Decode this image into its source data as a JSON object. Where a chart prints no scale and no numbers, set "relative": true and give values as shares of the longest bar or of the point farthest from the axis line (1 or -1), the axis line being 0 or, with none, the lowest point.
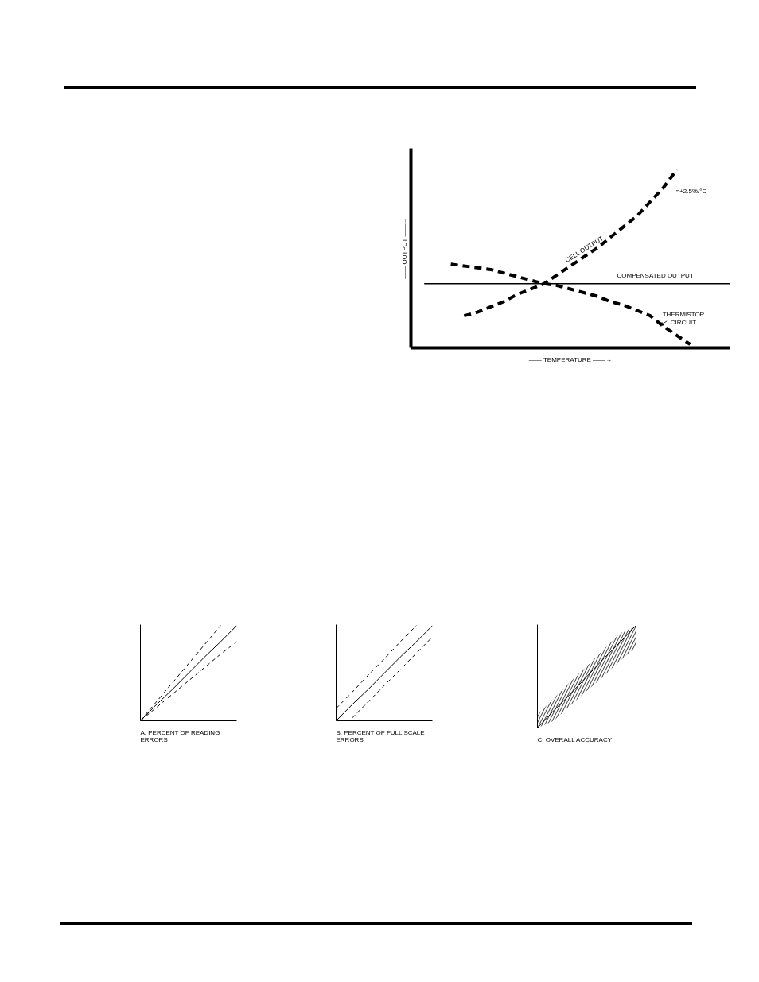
{
  "chart_data": [
    {
      "type": "line",
      "relative": true,
      "xlabel": "—— TEMPERATURE ——→",
      "ylabel": "—— OUTPUT ——→",
      "annotations": [
        "≈+2.5%/°C"
      ],
      "categories": [
        null,
        null,
        null,
        null,
        null,
        null,
        null,
        null,
        null,
        null,
        null,
        null,
        null,
        null,
        null,
        null,
        null,
        null,
        null,
        null,
        null,
        null,
        null,
        null,
        null
      ],
      "series": [
        {
          "name": "CELL OUTPUT",
          "color": "#000000",
          "line_style": "dashed",
          "values": [
            null,
            null,
            null,
            null,
            0.18,
            0.2,
            0.23,
            0.26,
            0.3,
            0.33,
            0.36,
            0.41,
            0.46,
            0.51,
            0.56,
            0.62,
            0.68,
            0.74,
            0.82,
            0.9,
            1,
            null,
            null,
            null,
            null
          ]
        },
        {
          "name": "COMPENSATED OUTPUT",
          "color": "#000000",
          "line_style": "solid",
          "values": [
            null,
            0.36,
            0.36,
            0.36,
            0.36,
            0.36,
            0.36,
            0.36,
            0.36,
            0.36,
            0.36,
            0.36,
            0.36,
            0.36,
            0.36,
            0.36,
            0.36,
            0.36,
            0.36,
            0.36,
            0.36,
            0.36,
            0.36,
            0.36,
            0.36
          ]
        },
        {
          "name": "THERMISTOR CIRCUIT",
          "color": "#000000",
          "line_style": "dashed",
          "values": [
            null,
            null,
            null,
            0.47,
            0.46,
            0.45,
            0.44,
            0.42,
            0.4,
            0.38,
            0.36,
            0.35,
            0.33,
            0.31,
            0.29,
            0.26,
            0.24,
            0.21,
            0.18,
            0.12,
            0.07,
            0.02,
            null,
            null,
            null
          ]
        }
      ]
    },
    {
      "type": "line",
      "relative": true,
      "title": "A. PERCENT OF READING ERRORS",
      "categories": [
        null,
        null,
        null,
        null,
        null,
        null,
        null
      ],
      "series": [
        {
          "color": "#000000",
          "line_style": "dashed",
          "values": [
            0,
            0.2,
            0.4,
            0.6,
            0.8,
            1,
            null
          ]
        },
        {
          "color": "#000000",
          "line_style": "solid",
          "values": [
            0,
            0.17,
            0.33,
            0.5,
            0.67,
            0.83,
            1
          ]
        },
        {
          "color": "#000000",
          "line_style": "dashed",
          "values": [
            0,
            0.14,
            0.28,
            0.42,
            0.56,
            0.7,
            0.83
          ]
        }
      ]
    },
    {
      "type": "line",
      "relative": true,
      "title": "B. PERCENT OF FULL SCALE ERRORS",
      "categories": [
        null,
        null,
        null,
        null,
        null,
        null,
        null
      ],
      "series": [
        {
          "color": "#000000",
          "line_style": "dashed",
          "values": [
            0.13,
            0.3,
            0.48,
            0.65,
            0.83,
            1,
            null
          ]
        },
        {
          "color": "#000000",
          "line_style": "solid",
          "values": [
            0,
            0.17,
            0.33,
            0.5,
            0.67,
            0.83,
            1
          ]
        },
        {
          "color": "#000000",
          "line_style": "dashed",
          "values": [
            null,
            0.03,
            0.2,
            0.37,
            0.54,
            0.71,
            0.88
          ]
        }
      ]
    },
    {
      "type": "line",
      "relative": true,
      "title": "C. OVERALL ACCURACY",
      "categories": [
        null,
        null,
        null,
        null,
        null,
        null,
        null
      ],
      "series": [
        {
          "color": "#000000",
          "line_style": "solid",
          "values": [
            0,
            0.17,
            0.33,
            0.5,
            0.67,
            0.83,
            1
          ],
          "lower": [
            0,
            0.07,
            0.22,
            0.36,
            0.5,
            0.65,
            0.79
          ],
          "upper": [
            0.13,
            0.29,
            0.45,
            0.6,
            0.76,
            0.92,
            1
          ]
        }
      ]
    }
  ]
}
